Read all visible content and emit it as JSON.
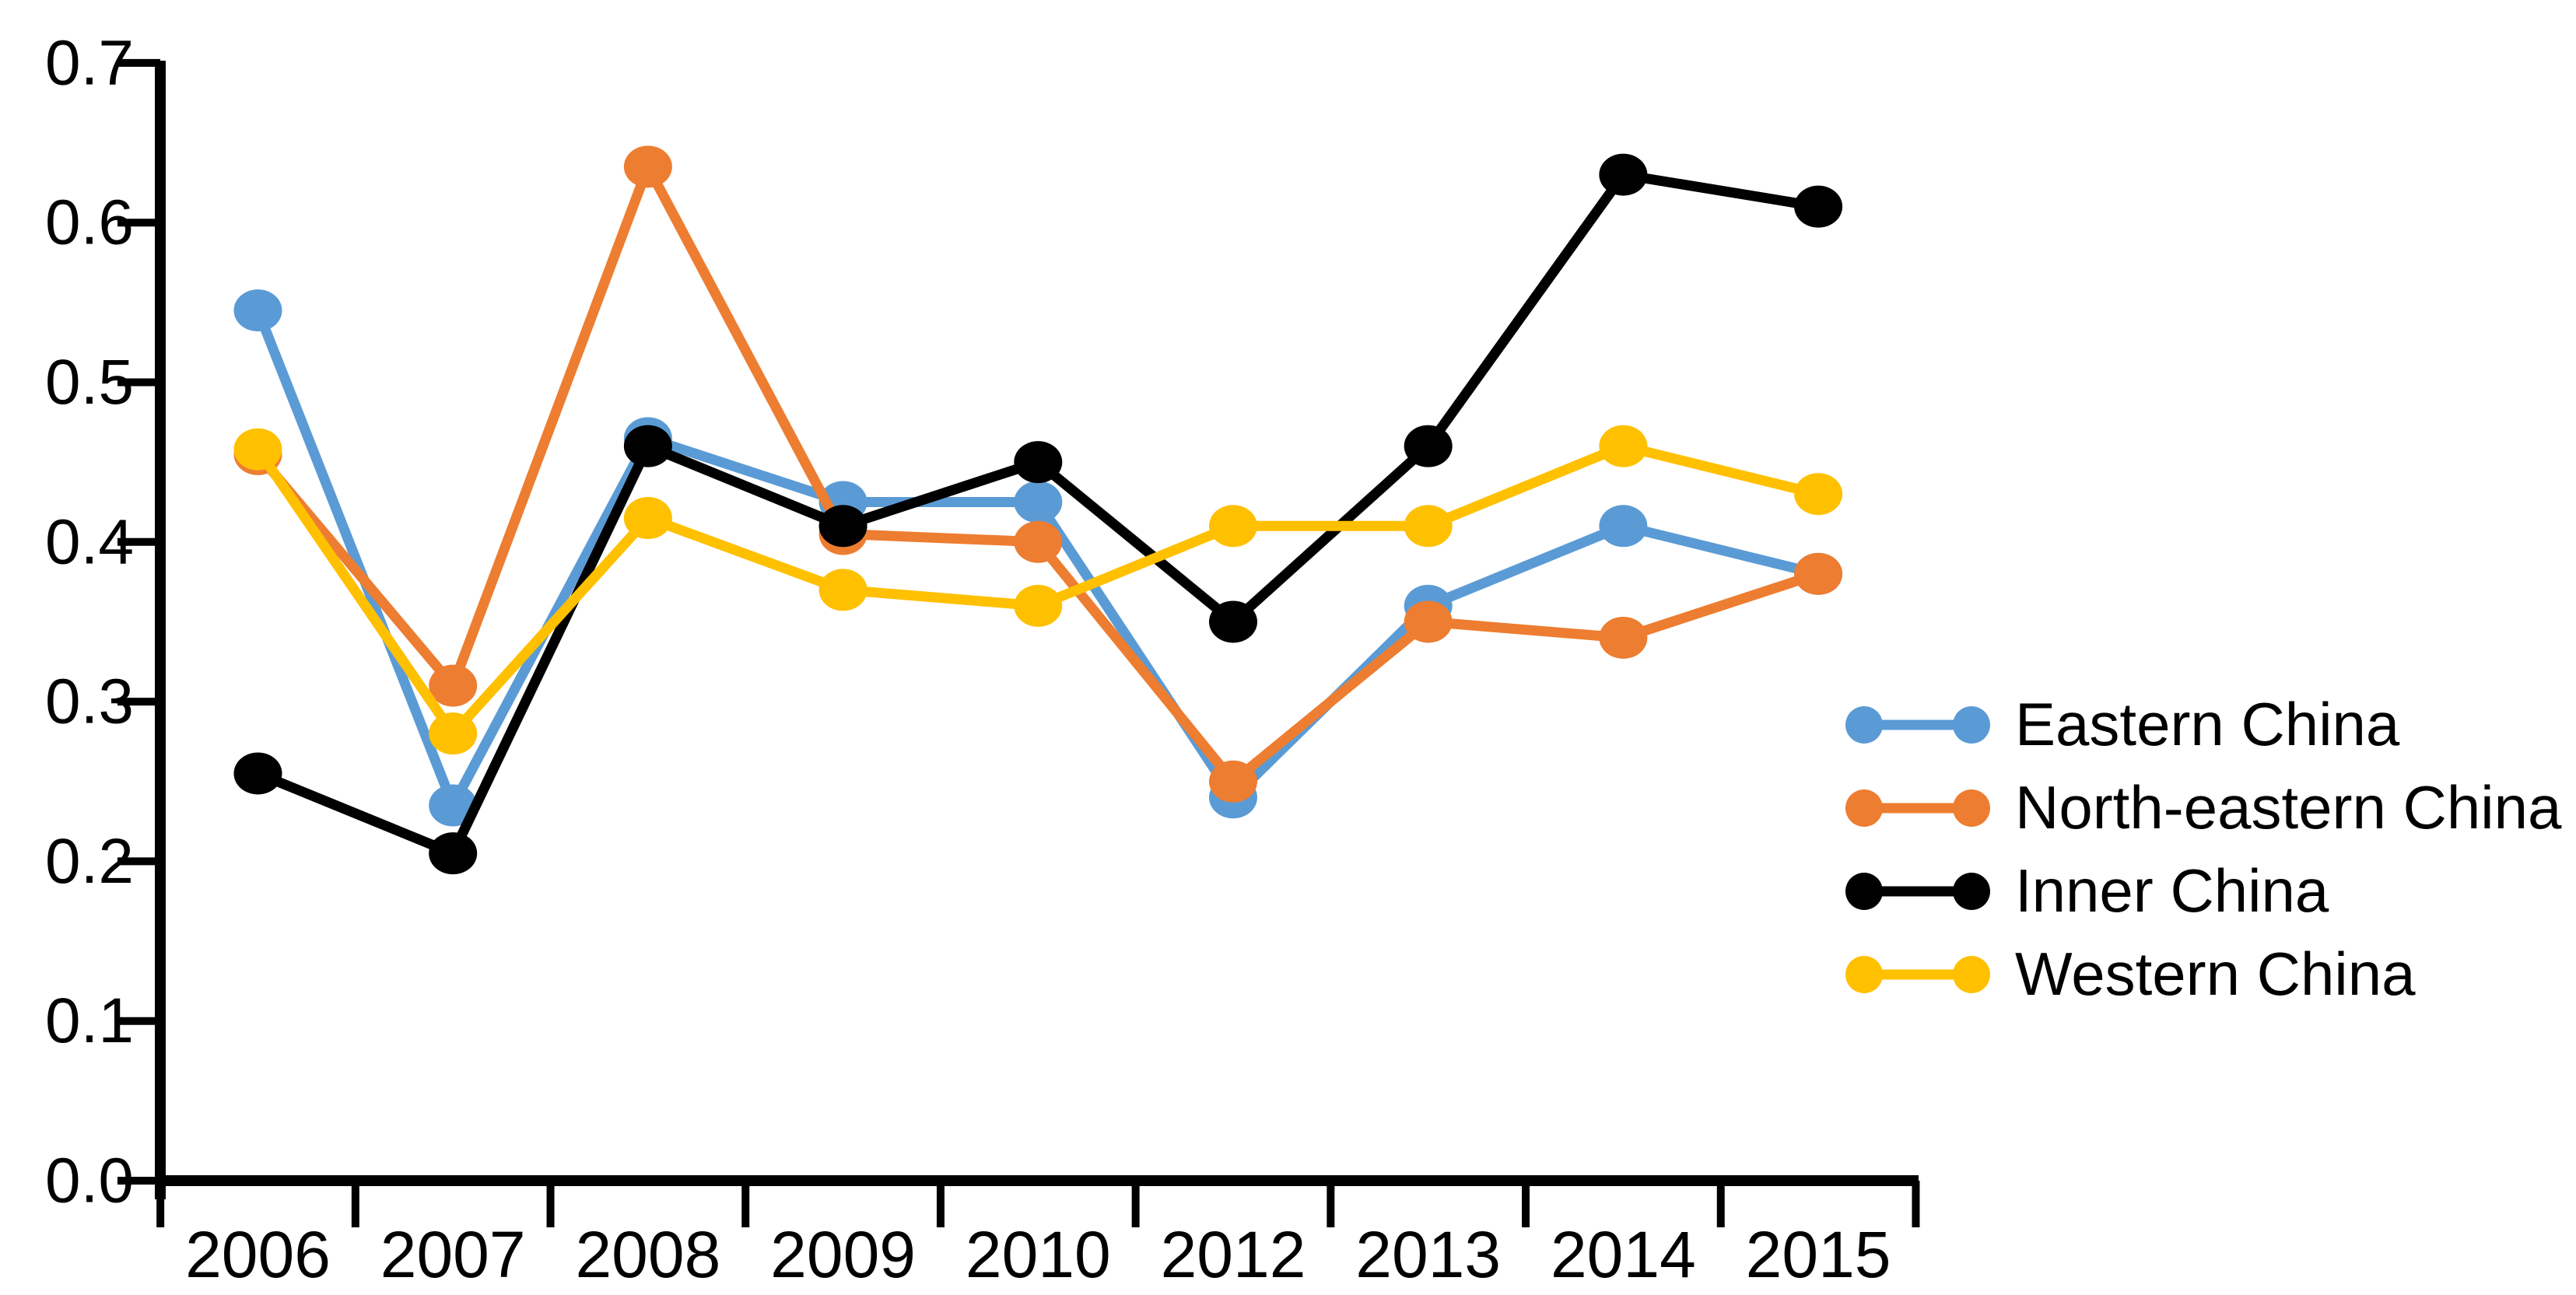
{
  "chart_data": {
    "type": "line",
    "title": "",
    "xlabel": "",
    "ylabel": "",
    "categories": [
      "2006",
      "2007",
      "2008",
      "2009",
      "2010",
      "2012",
      "2013",
      "2014",
      "2015"
    ],
    "series": [
      {
        "name": "Eastern China",
        "color": "#5B9BD5",
        "values": [
          0.545,
          0.235,
          0.465,
          0.425,
          0.425,
          0.24,
          0.36,
          0.41,
          0.38
        ]
      },
      {
        "name": "North-eastern China",
        "color": "#ED7D31",
        "values": [
          0.455,
          0.31,
          0.635,
          0.405,
          0.4,
          0.25,
          0.35,
          0.34,
          0.38
        ]
      },
      {
        "name": "Inner China",
        "color": "#000000",
        "values": [
          0.255,
          0.205,
          0.46,
          0.41,
          0.45,
          0.35,
          0.46,
          0.63,
          0.61
        ]
      },
      {
        "name": "Western China",
        "color": "#FFC000",
        "values": [
          0.458,
          0.28,
          0.415,
          0.37,
          0.36,
          0.41,
          0.41,
          0.46,
          0.43
        ]
      }
    ],
    "ylim": [
      0.0,
      0.7
    ],
    "ytick_step": 0.1,
    "ytick_labels": [
      "0.0",
      "0.1",
      "0.2",
      "0.3",
      "0.4",
      "0.5",
      "0.6",
      "0.7"
    ],
    "grid": false,
    "legend_position": "right",
    "axis_color": "#000000",
    "background": "#FFFFFF"
  }
}
